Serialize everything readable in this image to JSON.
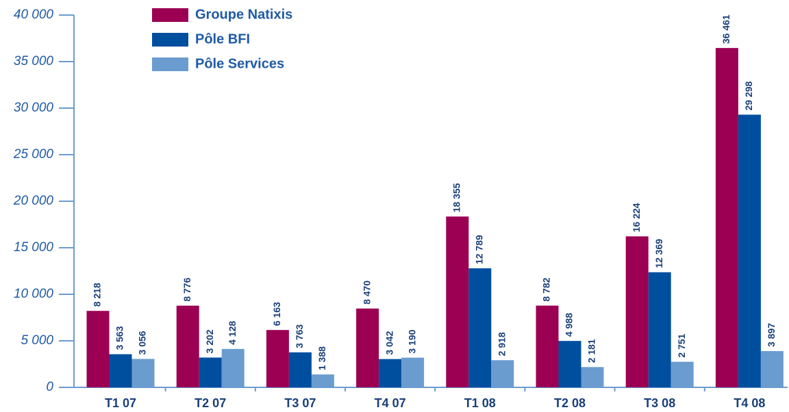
{
  "chart_data": {
    "type": "bar",
    "categories": [
      "T1 07",
      "T2 07",
      "T3 07",
      "T4 07",
      "T1 08",
      "T2 08",
      "T3 08",
      "T4 08"
    ],
    "series": [
      {
        "name": "Groupe Natixis",
        "color": "#9b0052",
        "values": [
          8218,
          8776,
          6163,
          8470,
          18355,
          8782,
          16224,
          36461
        ],
        "value_labels": [
          "8 218",
          "8 776",
          "6 163",
          "8 470",
          "18 355",
          "8 782",
          "16 224",
          "36 461"
        ]
      },
      {
        "name": "Pôle BFI",
        "color": "#004f9f",
        "values": [
          3563,
          3202,
          3763,
          3042,
          12789,
          4988,
          12369,
          29298
        ],
        "value_labels": [
          "3 563",
          "3 202",
          "3 763",
          "3 042",
          "12 789",
          "4 988",
          "12 369",
          "29 298"
        ]
      },
      {
        "name": "Pôle Services",
        "color": "#6b9ccf",
        "values": [
          3056,
          4128,
          1388,
          3190,
          2918,
          2181,
          2751,
          3897
        ],
        "value_labels": [
          "3 056",
          "4 128",
          "1 388",
          "3 190",
          "2 918",
          "2 181",
          "2 751",
          "3 897"
        ]
      }
    ],
    "ylim": [
      0,
      40000
    ],
    "yticks": [
      0,
      {
        "value": 5000,
        "label": "5 000"
      },
      {
        "value": 10000,
        "label": "10 000"
      },
      {
        "value": 15000,
        "label": "15 000"
      },
      {
        "value": 20000,
        "label": "20 000"
      },
      {
        "value": 25000,
        "label": "25 000"
      },
      {
        "value": 30000,
        "label": "30 000"
      },
      {
        "value": 35000,
        "label": "35 000"
      },
      {
        "value": 40000,
        "label": "40 000"
      }
    ],
    "legend": "top-left"
  }
}
